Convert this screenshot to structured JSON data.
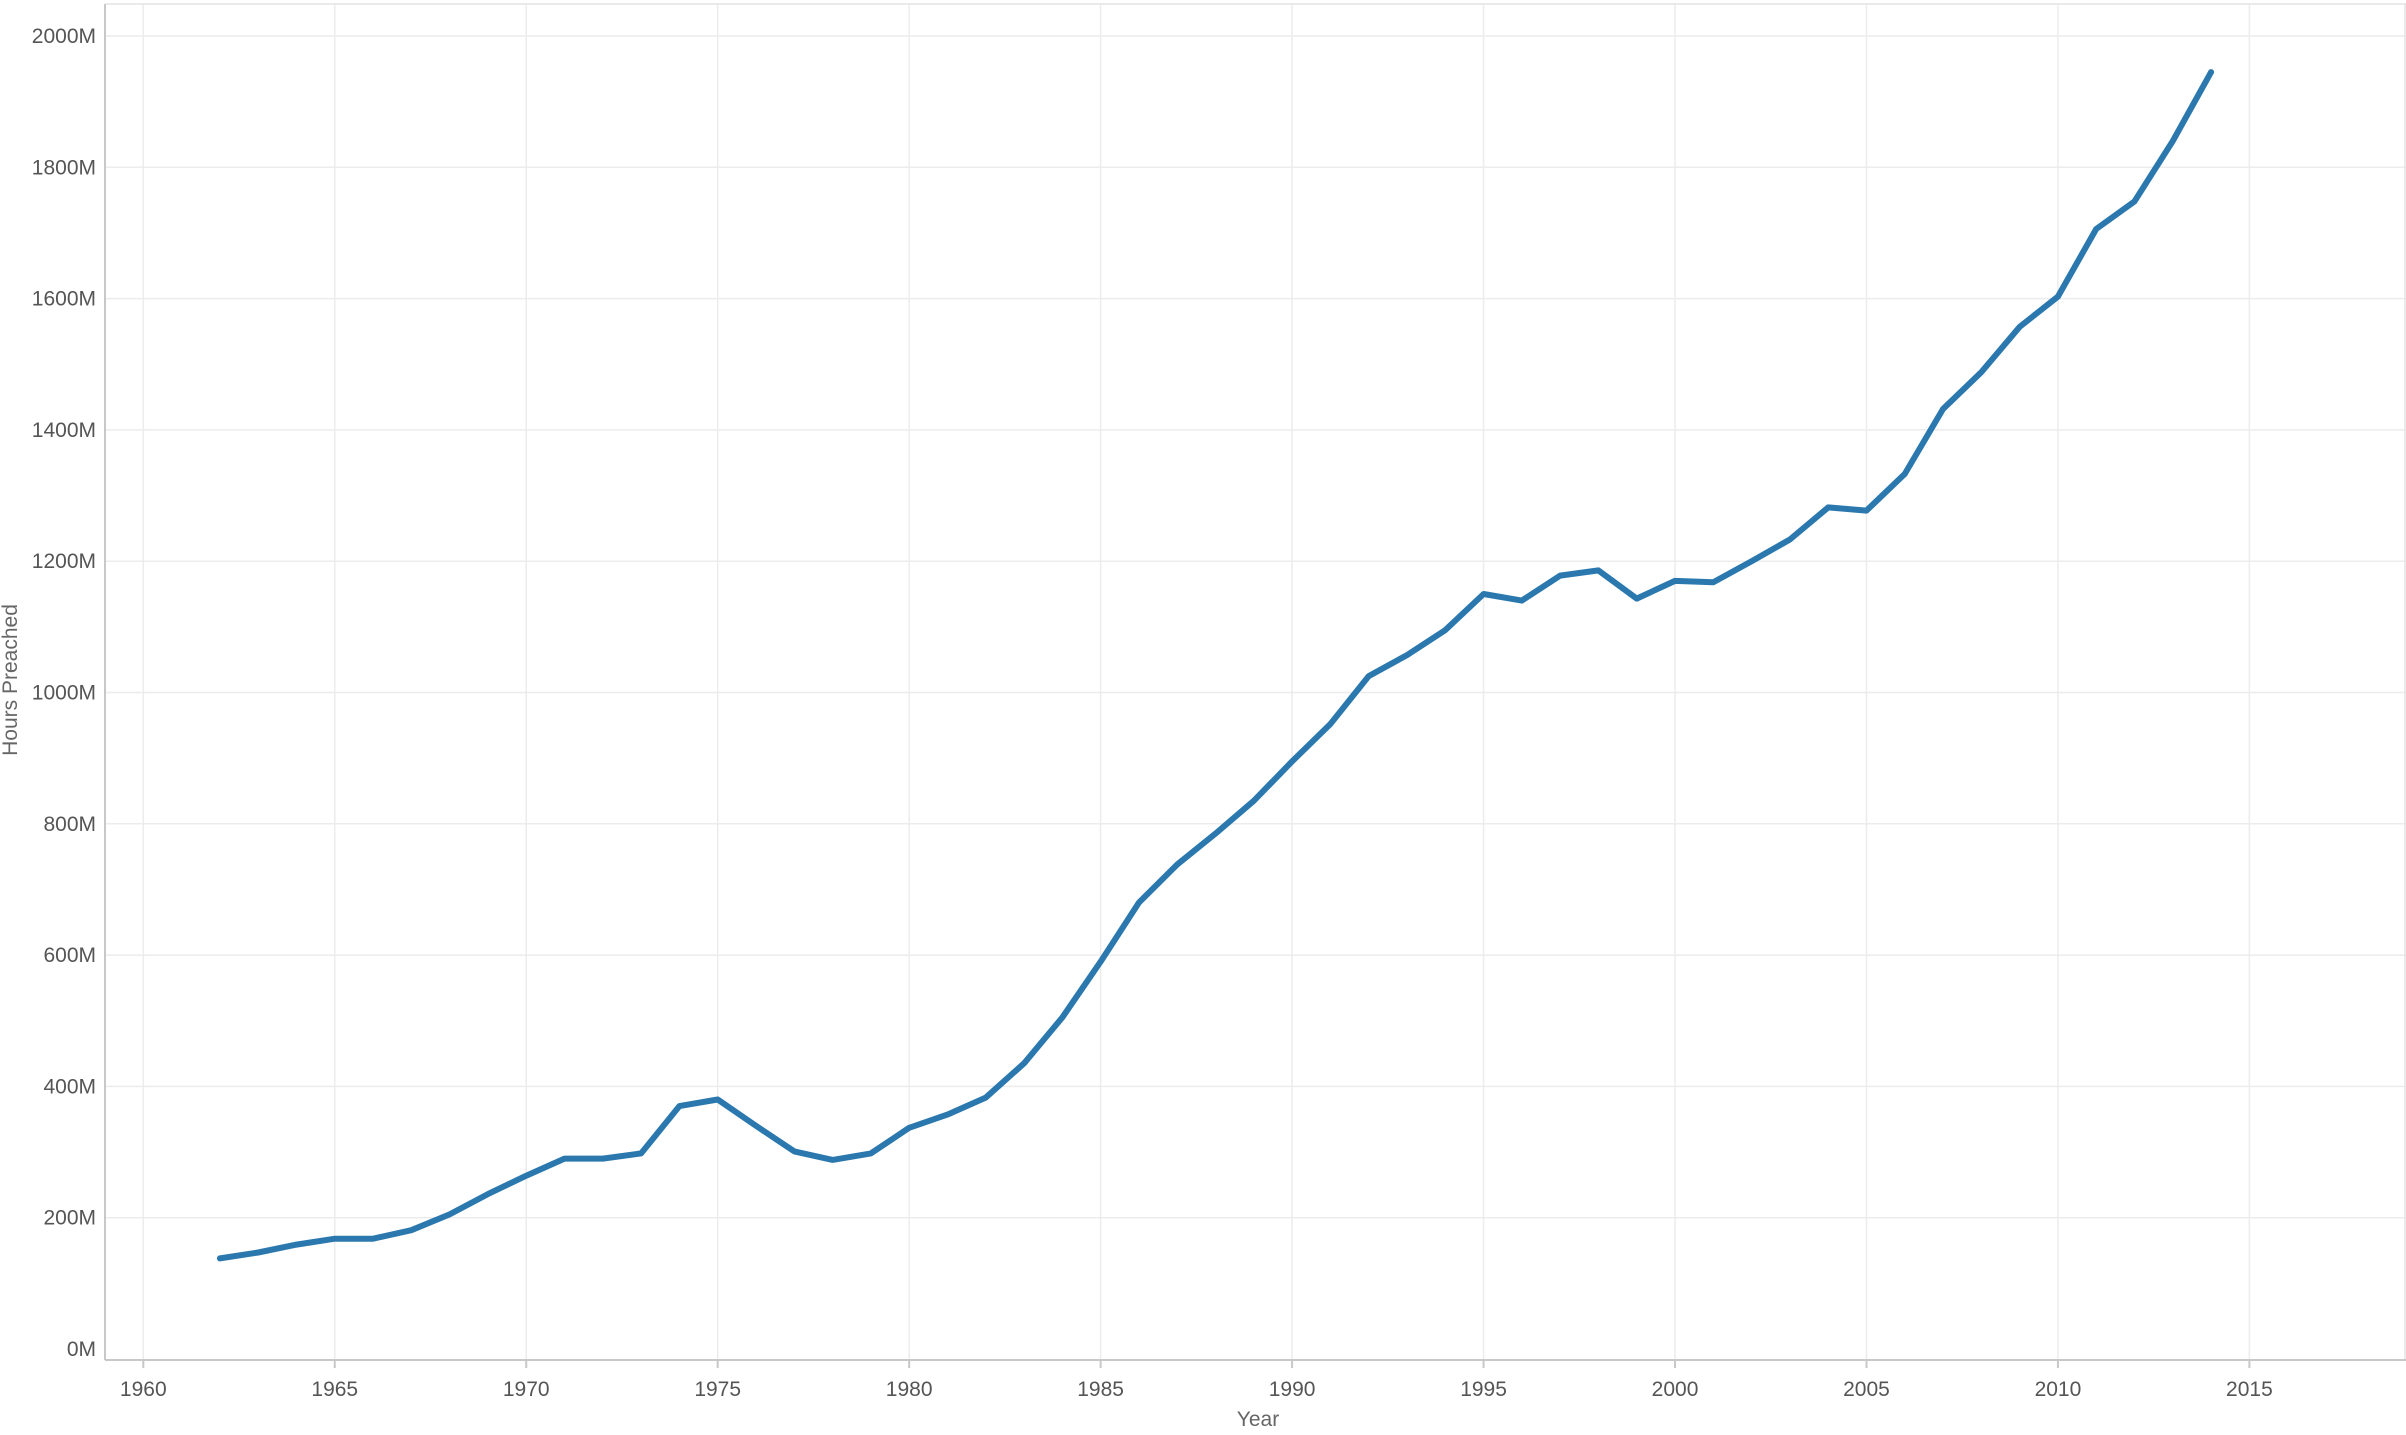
{
  "chart_data": {
    "type": "line",
    "title": "",
    "xlabel": "Year",
    "ylabel": "Hours Preached",
    "xlim": [
      1959,
      2017
    ],
    "ylim": [
      0,
      2000
    ],
    "x_ticks": [
      1960,
      1965,
      1970,
      1975,
      1980,
      1985,
      1990,
      1995,
      2000,
      2005,
      2010,
      2015
    ],
    "y_ticks": [
      0,
      200,
      400,
      600,
      800,
      1000,
      1200,
      1400,
      1600,
      1800,
      2000
    ],
    "y_tick_labels": [
      "0M",
      "200M",
      "400M",
      "600M",
      "800M",
      "1000M",
      "1200M",
      "1400M",
      "1600M",
      "1800M",
      "2000M"
    ],
    "grid": true,
    "line_color": "#2b78ae",
    "series": [
      {
        "x": [
          1962,
          1963,
          1964,
          1965,
          1966,
          1967,
          1968,
          1969,
          1970,
          1971,
          1972,
          1973,
          1974,
          1975,
          1976,
          1977,
          1978,
          1979,
          1980,
          1981,
          1982,
          1983,
          1984,
          1985,
          1986,
          1987,
          1988,
          1989,
          1990,
          1991,
          1992,
          1993,
          1994,
          1995,
          1996,
          1997,
          1998,
          1999,
          2000,
          2001,
          2002,
          2003,
          2004,
          2005,
          2006,
          2007,
          2008,
          2009,
          2010,
          2011,
          2012,
          2013,
          2014
        ],
        "values": [
          138,
          147,
          159,
          168,
          168,
          181,
          205,
          236,
          264,
          290,
          290,
          298,
          370,
          380,
          340,
          301,
          288,
          298,
          337,
          357,
          383,
          435,
          505,
          590,
          680,
          738,
          785,
          835,
          895,
          952,
          1025,
          1057,
          1095,
          1150,
          1140,
          1178,
          1186,
          1143,
          1170,
          1168,
          1200,
          1233,
          1282,
          1277,
          1333,
          1432,
          1488,
          1557,
          1603,
          1706,
          1748,
          1840,
          1945
        ]
      }
    ]
  }
}
